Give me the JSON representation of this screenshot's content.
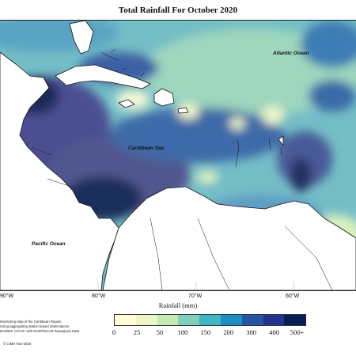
{
  "map": {
    "title": "Total Rainfall For October 2020",
    "labels": {
      "atlantic": "Atlantic Ocean",
      "caribbean": "Caribbean Sea",
      "pacific": "Pacific Ocean"
    },
    "longitude_ticks": [
      "90°W",
      "80°W",
      "70°W",
      "60°W"
    ],
    "axis_title": "Rainfall (mm)"
  },
  "legend": {
    "colors": [
      "#fffed8",
      "#eef6c6",
      "#c7e9b4",
      "#80cfbd",
      "#42b6c4",
      "#1f8dc0",
      "#2357a3",
      "#253493",
      "#071d58"
    ],
    "labels": [
      "0",
      "25",
      "50",
      "100",
      "150",
      "200",
      "300",
      "400",
      "500+"
    ]
  },
  "credits": {
    "lines": [
      "Monitoring Map of the Caribbean Region.",
      "Using aggregating station based observations,",
      "ECMWF, CICOF, with NCEP/NCAR Reanalysis Data"
    ],
    "copyright": "© CIMH Nov-2020"
  }
}
